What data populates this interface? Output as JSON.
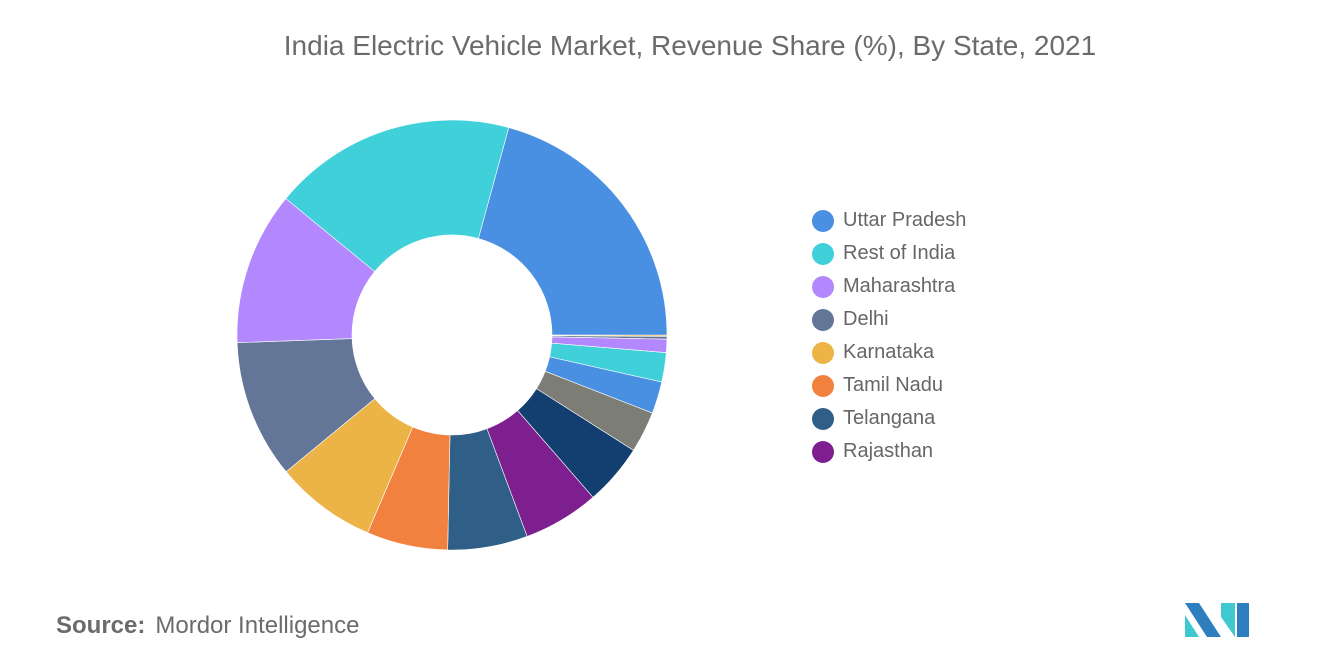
{
  "chart_data": {
    "type": "pie",
    "donut": true,
    "title": "India Electric Vehicle Market, Revenue Share (%), By State, 2021",
    "start_angle_deg": 15.3,
    "slices": [
      {
        "label": "Uttar Pradesh",
        "value": 20.75,
        "color": "#4a90e2"
      },
      {
        "label": "",
        "value": 0.1,
        "color": "#ecb347"
      },
      {
        "label": "",
        "value": 0.2,
        "color": "#647697"
      },
      {
        "label": "",
        "value": 1.0,
        "color": "#b388ff"
      },
      {
        "label": "",
        "value": 2.2,
        "color": "#40d0da"
      },
      {
        "label": "",
        "value": 2.4,
        "color": "#4a90e2"
      },
      {
        "label": "",
        "value": 3.1,
        "color": "#7c7d74"
      },
      {
        "label": "",
        "value": 4.6,
        "color": "#133f70"
      },
      {
        "label": "Rajasthan",
        "value": 5.7,
        "color": "#7e1f8f"
      },
      {
        "label": "Telangana",
        "value": 6.0,
        "color": "#2f5f86"
      },
      {
        "label": "Tamil Nadu",
        "value": 6.1,
        "color": "#f2813f"
      },
      {
        "label": "Karnataka",
        "value": 7.6,
        "color": "#ecb347"
      },
      {
        "label": "Delhi",
        "value": 10.4,
        "color": "#647697"
      },
      {
        "label": "Maharashtra",
        "value": 11.5,
        "color": "#b388ff"
      },
      {
        "label": "Rest of India",
        "value": 18.3,
        "color": "#40d0da"
      }
    ],
    "legend": [
      {
        "label": "Uttar Pradesh",
        "color": "#4a90e2"
      },
      {
        "label": "Rest of India",
        "color": "#40d0da"
      },
      {
        "label": "Maharashtra",
        "color": "#b388ff"
      },
      {
        "label": "Delhi",
        "color": "#647697"
      },
      {
        "label": "Karnataka",
        "color": "#ecb347"
      },
      {
        "label": "Tamil Nadu",
        "color": "#f2813f"
      },
      {
        "label": "Telangana",
        "color": "#2f5f86"
      },
      {
        "label": "Rajasthan",
        "color": "#7e1f8f"
      }
    ],
    "legend_position": "right"
  },
  "source": {
    "label": "Source:",
    "text": "Mordor Intelligence"
  },
  "logo": {
    "colors": [
      "#2e7fc0",
      "#40c8d0"
    ]
  }
}
